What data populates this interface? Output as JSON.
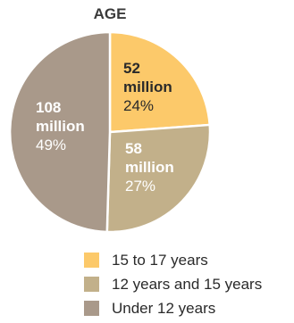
{
  "chart_data": {
    "type": "pie",
    "title": "AGE",
    "slices": [
      {
        "category": "15 to 17 years",
        "value_label": "52",
        "unit": "million",
        "value": 52,
        "percent_label": "24%",
        "color": "#fcc96a"
      },
      {
        "category": "12 years and 15 years",
        "value_label": "58",
        "unit": "million",
        "value": 58,
        "percent_label": "27%",
        "color": "#c2b08a"
      },
      {
        "category": "Under 12 years",
        "value_label": "108",
        "unit": "million",
        "value": 108,
        "percent_label": "49%",
        "color": "#a9998a"
      }
    ],
    "legend_placement": "bottom"
  }
}
